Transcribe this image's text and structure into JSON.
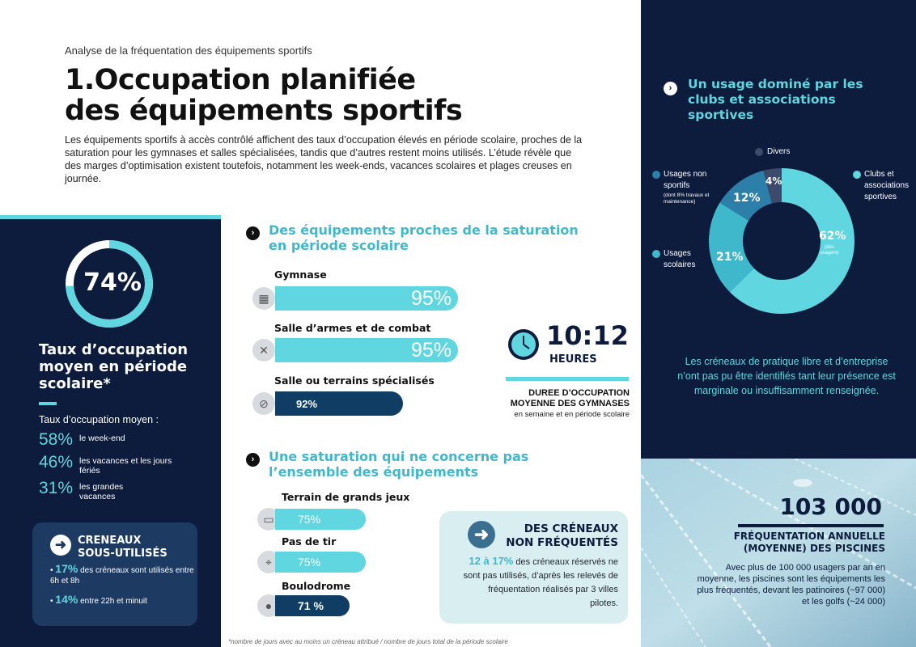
{
  "header": {
    "subtitle": "Analyse de la fréquentation des équipements sportifs",
    "title_line1": "1.Occupation planifiée",
    "title_line2": "des équipements sportifs",
    "intro": "Les équipements sportifs à accès contrôlé affichent des taux d’occupation élevés en période scolaire, proches de la saturation pour les gymnases et salles spécialisées, tandis que d’autres restent moins utilisés. L’étude révèle que des marges d’optimisation existent toutefois, notamment les week-ends, vacances scolaires et plages creuses en journée."
  },
  "left": {
    "donut_value": "74%",
    "donut_fraction": 0.74,
    "occupancy_title": "Taux d’occupation moyen en période scolaire*",
    "occupancy_sub": "Taux d’occupation moyen  :",
    "stats": [
      {
        "value": "58%",
        "label": "le week-end"
      },
      {
        "value": "46%",
        "label": "les vacances et les jours fériés"
      },
      {
        "value": "31%",
        "label": "les grandes vacances"
      }
    ],
    "underused": {
      "title_line1": "CRENEAUX",
      "title_line2": "SOUS-UTILISÉS",
      "items": [
        {
          "value": "17%",
          "text": "des créneaux sont utilisés entre 6h et 8h"
        },
        {
          "value": "14%",
          "text": "entre 22h et minuit"
        }
      ]
    }
  },
  "saturation": {
    "title": "Des équipements proches de la saturation en période scolaire",
    "bars": [
      {
        "label": "Gymnase",
        "value": "95%",
        "fraction": 0.95,
        "icon": "gym-icon"
      },
      {
        "label": "Salle d’armes et de combat",
        "value": "95%",
        "fraction": 0.95,
        "icon": "fencing-icon"
      },
      {
        "label": "Salle ou terrains spécialisés",
        "value": "92%",
        "fraction": 0.92,
        "icon": "ball-icon"
      }
    ]
  },
  "duration": {
    "time": "10:12",
    "unit": "HEURES",
    "desc_line1": "DUREE D’OCCUPATION",
    "desc_line2": "MOYENNE DES GYMNASES",
    "note": "en semaine et en période scolaire"
  },
  "partial": {
    "title": "Une saturation qui ne concerne pas l’ensemble des équipements",
    "bars": [
      {
        "label": "Terrain de grands jeux",
        "value": "75%",
        "fraction": 0.75,
        "icon": "field-icon"
      },
      {
        "label": "Pas de tir",
        "value": "75%",
        "fraction": 0.75,
        "icon": "shooting-icon"
      },
      {
        "label": "Boulodrome",
        "value": "71 %",
        "fraction": 0.71,
        "icon": "petanque-icon"
      }
    ]
  },
  "non_frequented": {
    "title_line1": "DES CRÉNEAUX",
    "title_line2": "NON FRÉQUENTÉS",
    "highlight": "12 à 17%",
    "text": "des créneaux réservés ne sont pas utilisés, d’après les relevés de fréquentation réalisés par 3 villes pilotes."
  },
  "footnote": "*nombre de jours avec au moins un créneau attribué / nombre de jours total de la période scolaire",
  "usage": {
    "title": "Un usage dominé par les clubs et associations sportives",
    "slices": [
      {
        "name": "Clubs et associations sportives",
        "value": 62,
        "label": "62%",
        "sub": "(des usagers)",
        "color": "#5fd6e0"
      },
      {
        "name": "Usages scolaires",
        "value": 21,
        "label": "21%",
        "color": "#3fb8cc"
      },
      {
        "name": "Usages non sportifs",
        "sub": "(dont 8% travaux et maintenance)",
        "value": 12,
        "label": "12%",
        "color": "#2b7fa8"
      },
      {
        "name": "Divers",
        "value": 4,
        "label": "4%",
        "color": "#3d4a6b"
      }
    ],
    "note": "Les créneaux de pratique libre et d’entreprise n’ont pas pu être identifiés tant leur présence est marginale ou insuffisamment renseignée."
  },
  "pools": {
    "value": "103 000",
    "title_line1": "FRÉQUENTATION ANNUELLE",
    "title_line2": "(MOYENNE) DES PISCINES",
    "desc": "Avec plus de 100 000 usagers par an en moyenne, les piscines sont les équipements les plus fréquentés, devant les patinoires (~97 000) et les golfs (~24 000)"
  }
}
